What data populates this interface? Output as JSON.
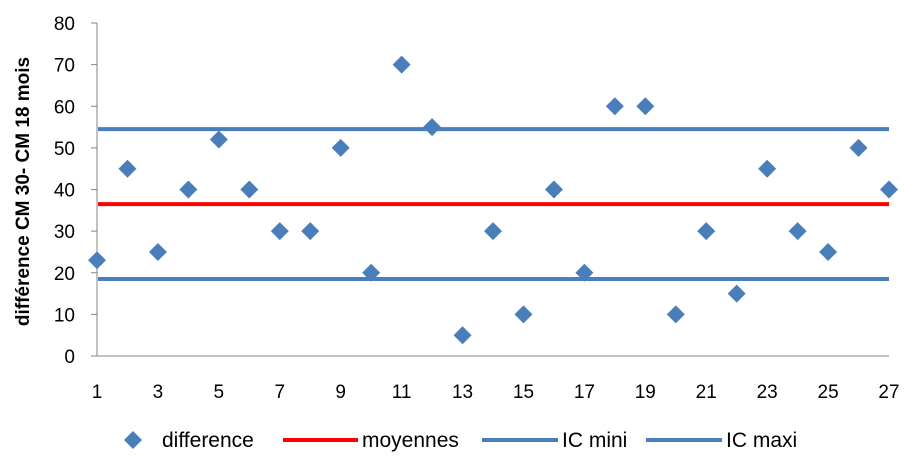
{
  "chart_data": {
    "type": "scatter",
    "title": "",
    "xlabel": "",
    "ylabel": "différence CM 30- CM 18 mois",
    "xlim": [
      1,
      27
    ],
    "ylim": [
      0,
      80
    ],
    "yticks": [
      0,
      10,
      20,
      30,
      40,
      50,
      60,
      70,
      80
    ],
    "xticks": [
      1,
      3,
      5,
      7,
      9,
      11,
      13,
      15,
      17,
      19,
      21,
      23,
      25,
      27
    ],
    "grid": false,
    "legend_position": "bottom",
    "series": [
      {
        "name": "difference",
        "kind": "markers",
        "marker": "diamond",
        "color": "#4a7ebb",
        "x": [
          1,
          2,
          3,
          4,
          5,
          6,
          7,
          8,
          9,
          10,
          11,
          12,
          13,
          14,
          15,
          16,
          17,
          18,
          19,
          20,
          21,
          22,
          23,
          24,
          25,
          26,
          27
        ],
        "y": [
          23,
          45,
          25,
          40,
          52,
          40,
          30,
          30,
          50,
          20,
          70,
          55,
          5,
          30,
          10,
          40,
          20,
          60,
          60,
          10,
          30,
          15,
          45,
          30,
          25,
          50,
          40
        ]
      },
      {
        "name": "moyennes",
        "kind": "hline",
        "color": "#ff0000",
        "value": 36.5
      },
      {
        "name": "IC mini",
        "kind": "hline",
        "color": "#4a7ebb",
        "value": 54.5
      },
      {
        "name": "IC maxi",
        "kind": "hline",
        "color": "#4a7ebb",
        "value": 18.5
      }
    ]
  }
}
